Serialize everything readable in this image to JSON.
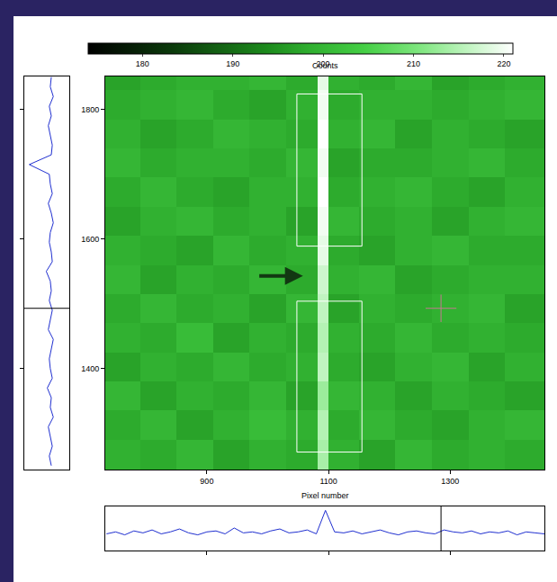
{
  "chart_data": {
    "type": "heatmap",
    "title": "Counts",
    "x_label": "Pixel number",
    "x_edges": [
      733,
      790,
      850,
      910,
      970,
      1030,
      1082,
      1100,
      1150,
      1210,
      1270,
      1330,
      1390,
      1455
    ],
    "y_edges": [
      1244,
      1290,
      1335,
      1380,
      1425,
      1470,
      1515,
      1560,
      1605,
      1650,
      1695,
      1740,
      1785,
      1830,
      1851
    ],
    "z": [
      [
        199,
        198,
        200,
        197,
        199,
        198,
        214,
        199,
        197,
        200,
        198,
        199,
        198
      ],
      [
        198,
        200,
        197,
        199,
        201,
        199,
        215,
        198,
        200,
        198,
        197,
        199,
        200
      ],
      [
        200,
        197,
        199,
        198,
        200,
        197,
        213,
        200,
        199,
        197,
        199,
        198,
        197
      ],
      [
        197,
        199,
        198,
        200,
        198,
        199,
        216,
        198,
        197,
        199,
        200,
        197,
        199
      ],
      [
        199,
        198,
        201,
        197,
        199,
        198,
        215,
        199,
        198,
        200,
        198,
        199,
        198
      ],
      [
        198,
        200,
        198,
        199,
        197,
        200,
        216,
        197,
        199,
        198,
        199,
        200,
        197
      ],
      [
        200,
        197,
        199,
        198,
        200,
        198,
        217,
        199,
        200,
        197,
        198,
        199,
        199
      ],
      [
        199,
        198,
        197,
        200,
        198,
        199,
        219,
        198,
        197,
        199,
        200,
        198,
        198
      ],
      [
        197,
        199,
        200,
        198,
        199,
        197,
        220,
        200,
        198,
        199,
        197,
        199,
        200
      ],
      [
        198,
        200,
        198,
        197,
        199,
        199,
        221,
        198,
        199,
        200,
        198,
        197,
        199
      ],
      [
        200,
        198,
        199,
        199,
        198,
        200,
        220,
        197,
        198,
        198,
        199,
        200,
        198
      ],
      [
        199,
        197,
        198,
        200,
        199,
        198,
        221,
        199,
        200,
        197,
        199,
        198,
        197
      ],
      [
        198,
        199,
        200,
        198,
        197,
        199,
        220,
        198,
        199,
        199,
        198,
        199,
        200
      ],
      [
        197,
        198,
        199,
        199,
        200,
        198,
        219,
        199,
        198,
        200,
        197,
        198,
        199
      ]
    ],
    "xlim": [
      733,
      1455
    ],
    "xticks": [
      900,
      1100,
      1300
    ],
    "ylim": [
      1244,
      1851
    ],
    "yticks": [
      1400,
      1600,
      1800
    ],
    "colorbar": {
      "range": [
        174,
        221
      ],
      "ticks": [
        180,
        190,
        200,
        210,
        220
      ]
    },
    "regions": [
      {
        "x": [
          1048,
          1155
        ],
        "y": [
          1589,
          1824
        ]
      },
      {
        "x": [
          1048,
          1155
        ],
        "y": [
          1271,
          1504
        ]
      }
    ],
    "arrow": {
      "x": [
        984,
        1058
      ],
      "y": 1543
    },
    "cursor": {
      "x": 1285,
      "y": 1493
    },
    "profiles": [
      {
        "type": "line",
        "color": "#1f2fd0",
        "tick_labels": false,
        "xlim": [
          225,
          180
        ],
        "y": [
          1250,
          1265,
          1280,
          1295,
          1310,
          1325,
          1340,
          1355,
          1370,
          1385,
          1400,
          1415,
          1430,
          1445,
          1460,
          1475,
          1490,
          1505,
          1520,
          1535,
          1550,
          1565,
          1580,
          1595,
          1610,
          1625,
          1640,
          1655,
          1670,
          1685,
          1700,
          1715,
          1730,
          1745,
          1760,
          1775,
          1790,
          1805,
          1820,
          1835,
          1850
        ],
        "values": [
          198,
          200,
          197,
          199,
          201,
          196,
          199,
          198,
          202,
          197,
          199,
          200,
          198,
          196,
          201,
          199,
          197,
          200,
          198,
          199,
          203,
          197,
          198,
          200,
          199,
          196,
          198,
          201,
          197,
          199,
          200,
          220,
          198,
          197,
          199,
          201,
          198,
          200,
          196,
          199,
          198
        ]
      },
      {
        "type": "line",
        "color": "#1f2fd0",
        "tick_labels": false,
        "ylim": [
          180,
          225
        ],
        "x": [
          735,
          750,
          765,
          780,
          795,
          810,
          825,
          840,
          855,
          870,
          885,
          900,
          915,
          930,
          945,
          960,
          975,
          990,
          1005,
          1020,
          1035,
          1050,
          1065,
          1080,
          1095,
          1110,
          1125,
          1140,
          1155,
          1170,
          1185,
          1200,
          1215,
          1230,
          1245,
          1260,
          1275,
          1290,
          1305,
          1320,
          1335,
          1350,
          1365,
          1380,
          1395,
          1410,
          1425,
          1440,
          1455
        ],
        "values": [
          197,
          199,
          196,
          200,
          198,
          201,
          197,
          199,
          202,
          198,
          196,
          199,
          200,
          197,
          203,
          198,
          199,
          197,
          200,
          202,
          198,
          199,
          201,
          197,
          221,
          199,
          198,
          200,
          197,
          199,
          201,
          198,
          196,
          199,
          200,
          198,
          197,
          201,
          199,
          198,
          200,
          197,
          199,
          198,
          200,
          196,
          199,
          198,
          197
        ]
      }
    ]
  }
}
